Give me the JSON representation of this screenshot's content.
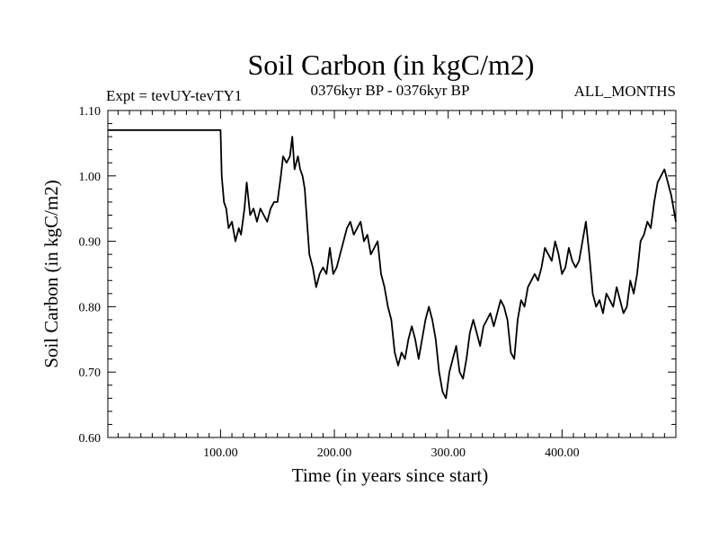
{
  "chart_data": {
    "type": "line",
    "title": "Soil Carbon (in kgC/m2)",
    "subtitle_left": "Expt = tevUY-tevTY1",
    "subtitle_center": "0376kyr BP - 0376kyr BP",
    "subtitle_right": "ALL_MONTHS",
    "xlabel": "Time (in years since start)",
    "ylabel": "Soil Carbon (in kgC/m2)",
    "xlim": [
      1,
      500
    ],
    "ylim": [
      0.6,
      1.1
    ],
    "xticks": [
      100,
      200,
      300,
      400
    ],
    "xtick_labels": [
      "100.00",
      "200.00",
      "300.00",
      "400.00"
    ],
    "yticks": [
      0.6,
      0.7,
      0.8,
      0.9,
      1.0,
      1.1
    ],
    "ytick_labels": [
      "0.60",
      "0.70",
      "0.80",
      "0.90",
      "1.00",
      "1.10"
    ],
    "line_color": "#000000",
    "grid": false,
    "series": [
      {
        "x": [
          1,
          100,
          101,
          103,
          105,
          107,
          110,
          113,
          116,
          118,
          121,
          123,
          126,
          129,
          132,
          135,
          138,
          141,
          144,
          147,
          150,
          153,
          155,
          158,
          161,
          163,
          165,
          168,
          170,
          172,
          174,
          176,
          178,
          181,
          184,
          187,
          190,
          193,
          196,
          199,
          202,
          205,
          208,
          211,
          214,
          217,
          220,
          223,
          226,
          229,
          232,
          235,
          238,
          241,
          244,
          247,
          250,
          253,
          256,
          259,
          262,
          265,
          268,
          271,
          274,
          277,
          280,
          283,
          286,
          289,
          292,
          295,
          298,
          301,
          304,
          307,
          310,
          313,
          316,
          319,
          322,
          325,
          328,
          331,
          334,
          337,
          340,
          343,
          346,
          349,
          352,
          355,
          358,
          361,
          364,
          367,
          370,
          373,
          376,
          379,
          382,
          385,
          388,
          391,
          394,
          397,
          400,
          403,
          406,
          409,
          412,
          415,
          418,
          421,
          424,
          427,
          430,
          433,
          436,
          439,
          442,
          445,
          448,
          451,
          454,
          457,
          460,
          463,
          466,
          469,
          472,
          475,
          478,
          481,
          484,
          487,
          490,
          493,
          496,
          500
        ],
        "y": [
          1.07,
          1.07,
          1.0,
          0.96,
          0.95,
          0.92,
          0.93,
          0.9,
          0.92,
          0.91,
          0.95,
          0.99,
          0.94,
          0.95,
          0.93,
          0.95,
          0.94,
          0.93,
          0.95,
          0.96,
          0.96,
          1.0,
          1.03,
          1.02,
          1.03,
          1.06,
          1.01,
          1.03,
          1.01,
          1.0,
          0.98,
          0.93,
          0.88,
          0.86,
          0.83,
          0.85,
          0.86,
          0.85,
          0.89,
          0.85,
          0.86,
          0.88,
          0.9,
          0.92,
          0.93,
          0.91,
          0.92,
          0.93,
          0.9,
          0.91,
          0.88,
          0.89,
          0.9,
          0.85,
          0.83,
          0.8,
          0.78,
          0.73,
          0.71,
          0.73,
          0.72,
          0.75,
          0.77,
          0.75,
          0.72,
          0.75,
          0.78,
          0.8,
          0.78,
          0.75,
          0.7,
          0.67,
          0.66,
          0.7,
          0.72,
          0.74,
          0.7,
          0.69,
          0.72,
          0.76,
          0.78,
          0.76,
          0.74,
          0.77,
          0.78,
          0.79,
          0.77,
          0.79,
          0.81,
          0.8,
          0.78,
          0.73,
          0.72,
          0.78,
          0.81,
          0.8,
          0.83,
          0.84,
          0.85,
          0.84,
          0.86,
          0.89,
          0.88,
          0.87,
          0.9,
          0.88,
          0.85,
          0.86,
          0.89,
          0.87,
          0.86,
          0.87,
          0.9,
          0.93,
          0.88,
          0.82,
          0.8,
          0.81,
          0.79,
          0.82,
          0.81,
          0.8,
          0.83,
          0.81,
          0.79,
          0.8,
          0.84,
          0.82,
          0.85,
          0.9,
          0.91,
          0.93,
          0.92,
          0.96,
          0.99,
          1.0,
          1.01,
          0.99,
          0.97,
          0.93
        ]
      }
    ]
  }
}
